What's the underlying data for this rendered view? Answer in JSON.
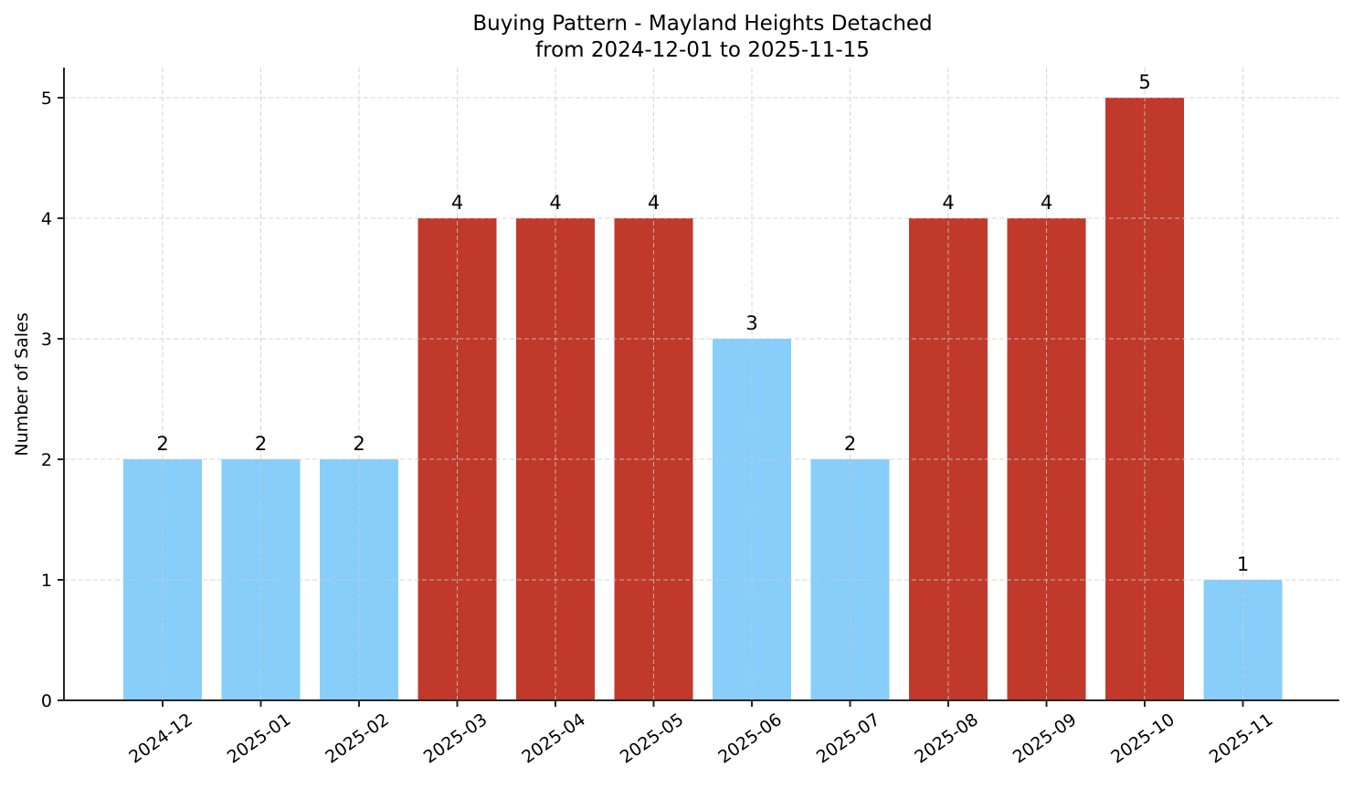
{
  "chart_data": {
    "type": "bar",
    "title": "Buying Pattern - Mayland Heights Detached",
    "subtitle": "from 2024-12-01 to 2025-11-15",
    "xlabel": "",
    "ylabel": "Number of Sales",
    "categories": [
      "2024-12",
      "2025-01",
      "2025-02",
      "2025-03",
      "2025-04",
      "2025-05",
      "2025-06",
      "2025-07",
      "2025-08",
      "2025-09",
      "2025-10",
      "2025-11"
    ],
    "values": [
      2,
      2,
      2,
      4,
      4,
      4,
      3,
      2,
      4,
      4,
      5,
      1
    ],
    "bar_colors": [
      "#87CEFA",
      "#87CEFA",
      "#87CEFA",
      "#C0392B",
      "#C0392B",
      "#C0392B",
      "#87CEFA",
      "#87CEFA",
      "#C0392B",
      "#C0392B",
      "#C0392B",
      "#87CEFA"
    ],
    "data_labels": [
      "2",
      "2",
      "2",
      "4",
      "4",
      "4",
      "3",
      "2",
      "4",
      "4",
      "5",
      "1"
    ],
    "yticks": [
      0,
      1,
      2,
      3,
      4,
      5
    ],
    "ytick_labels": [
      "0",
      "1",
      "2",
      "3",
      "4",
      "5"
    ],
    "ylim": [
      0,
      5.25
    ],
    "grid": true,
    "legend": null,
    "xtick_rotation": 35,
    "colors": {
      "low": "#87CEFA",
      "high": "#C0392B"
    }
  }
}
